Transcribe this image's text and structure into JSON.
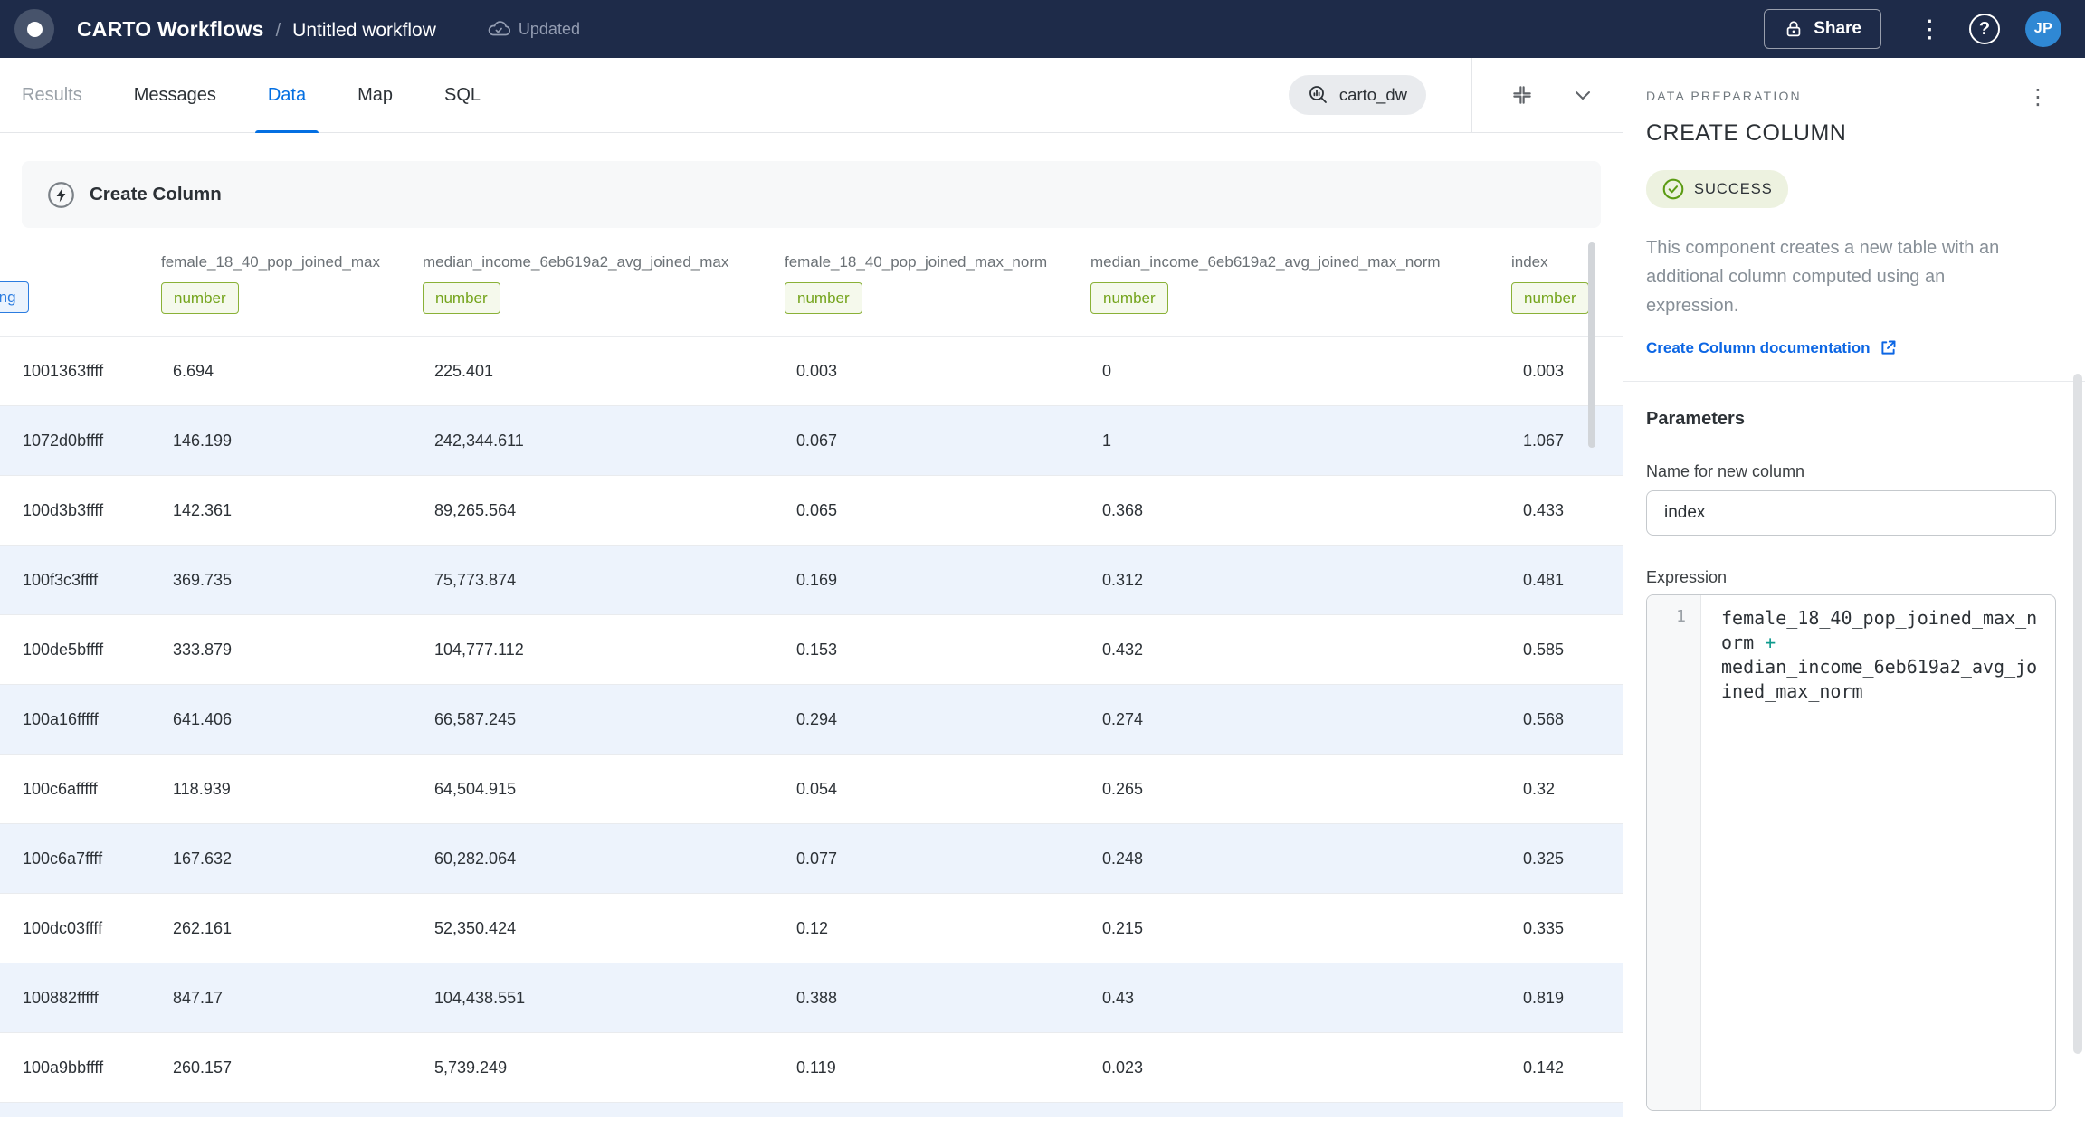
{
  "topbar": {
    "app_title": "CARTO Workflows",
    "separator": "/",
    "workflow_title": "Untitled workflow",
    "sync_status": "Updated",
    "share_label": "Share",
    "avatar_initials": "JP"
  },
  "tabs": [
    {
      "label": "Results",
      "state": "muted"
    },
    {
      "label": "Messages",
      "state": "default"
    },
    {
      "label": "Data",
      "state": "active"
    },
    {
      "label": "Map",
      "state": "default"
    },
    {
      "label": "SQL",
      "state": "default"
    }
  ],
  "data_toolbar": {
    "connection_label": "carto_dw"
  },
  "main": {
    "banner_title": "Create Column",
    "table": {
      "columns": [
        {
          "name": "",
          "type": "string",
          "clipped": true
        },
        {
          "name": "female_18_40_pop_joined_max",
          "type": "number"
        },
        {
          "name": "median_income_6eb619a2_avg_joined_max",
          "type": "number"
        },
        {
          "name": "female_18_40_pop_joined_max_norm",
          "type": "number"
        },
        {
          "name": "median_income_6eb619a2_avg_joined_max_norm",
          "type": "number"
        },
        {
          "name": "index",
          "type": "number"
        }
      ],
      "rows": [
        [
          "1001363ffff",
          "6.694",
          "225.401",
          "0.003",
          "0",
          "0.003"
        ],
        [
          "1072d0bffff",
          "146.199",
          "242,344.611",
          "0.067",
          "1",
          "1.067"
        ],
        [
          "100d3b3ffff",
          "142.361",
          "89,265.564",
          "0.065",
          "0.368",
          "0.433"
        ],
        [
          "100f3c3ffff",
          "369.735",
          "75,773.874",
          "0.169",
          "0.312",
          "0.481"
        ],
        [
          "100de5bffff",
          "333.879",
          "104,777.112",
          "0.153",
          "0.432",
          "0.585"
        ],
        [
          "100a16fffff",
          "641.406",
          "66,587.245",
          "0.294",
          "0.274",
          "0.568"
        ],
        [
          "100c6afffff",
          "118.939",
          "64,504.915",
          "0.054",
          "0.265",
          "0.32"
        ],
        [
          "100c6a7ffff",
          "167.632",
          "60,282.064",
          "0.077",
          "0.248",
          "0.325"
        ],
        [
          "100dc03ffff",
          "262.161",
          "52,350.424",
          "0.12",
          "0.215",
          "0.335"
        ],
        [
          "100882fffff",
          "847.17",
          "104,438.551",
          "0.388",
          "0.43",
          "0.819"
        ],
        [
          "100a9bbffff",
          "260.157",
          "5,739.249",
          "0.119",
          "0.023",
          "0.142"
        ]
      ]
    }
  },
  "panel": {
    "category": "DATA PREPARATION",
    "title": "CREATE COLUMN",
    "status_label": "SUCCESS",
    "description": "This component creates a new table with an additional column computed using an expression.",
    "doc_link_label": "Create Column documentation",
    "parameters_title": "Parameters",
    "name_field_label": "Name for new column",
    "name_field_value": "index",
    "expression_label": "Expression",
    "expression_line_number": "1",
    "expression": {
      "left": "female_18_40_pop_joined_max_norm",
      "operator": " + ",
      "right": "median_income_6eb619a2_avg_joined_max_norm"
    }
  },
  "colors": {
    "topbar_navy": "#1e2b49",
    "accent_blue": "#036fe2",
    "link_blue": "#0c66e4",
    "success_green": "#5b9b13",
    "badge_number_green": "#74a41c",
    "badge_string_blue": "#2b7ce0",
    "zebra_row": "#edf3fc",
    "operator_teal": "#0f9b8e"
  }
}
